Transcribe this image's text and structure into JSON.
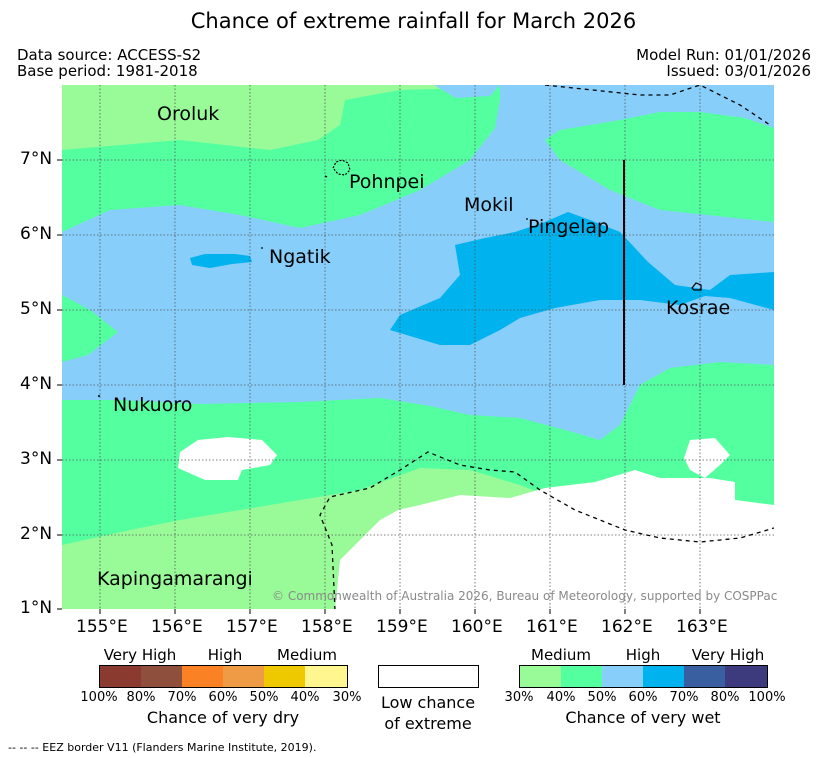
{
  "title": "Chance of extreme rainfall for March 2026",
  "header": {
    "data_source": "Data source: ACCESS-S2",
    "base_period": "Base period: 1981-2018",
    "model_run": "Model Run: 01/01/2026",
    "issued": "Issued: 03/01/2026"
  },
  "map": {
    "longitude_ticks": [
      "155°E",
      "156°E",
      "157°E",
      "158°E",
      "159°E",
      "160°E",
      "161°E",
      "162°E",
      "163°E"
    ],
    "latitude_ticks": [
      "7°N",
      "6°N",
      "5°N",
      "4°N",
      "3°N",
      "2°N",
      "1°N"
    ],
    "places": {
      "oroluk": "Oroluk",
      "pohnpei": "Pohnpei",
      "mokil": "Mokil",
      "pingelap": "Pingelap",
      "ngatik": "Ngatik",
      "kosrae": "Kosrae",
      "nukuoro": "Nukuoro",
      "kapingamarangi": "Kapingamarangi"
    },
    "copyright": "© Commonwealth of Australia 2026, Bureau of Meteorology, supported by COSPPac"
  },
  "legend": {
    "dry": {
      "categories": {
        "very_high": "Very High",
        "high": "High",
        "medium": "Medium"
      },
      "percents": [
        "100%",
        "80%",
        "70%",
        "60%",
        "50%",
        "40%",
        "30%"
      ],
      "colors": [
        "#8b3a30",
        "#8e4f3c",
        "#fb8224",
        "#ef9a44",
        "#eec900",
        "#fff68f"
      ],
      "caption": "Chance of very dry"
    },
    "low": {
      "caption_line1": "Low chance",
      "caption_line2": "of extreme"
    },
    "wet": {
      "categories": {
        "medium": "Medium",
        "high": "High",
        "very_high": "Very High"
      },
      "percents": [
        "30%",
        "40%",
        "50%",
        "60%",
        "70%",
        "80%",
        "100%"
      ],
      "colors": [
        "#98fb98",
        "#54ff9f",
        "#87cefa",
        "#00b2ee",
        "#3a5fa0",
        "#3d3b7e"
      ],
      "caption": "Chance of very wet"
    }
  },
  "footnote": "-- -- -- EEZ border V11 (Flanders Marine Institute, 2019)."
}
